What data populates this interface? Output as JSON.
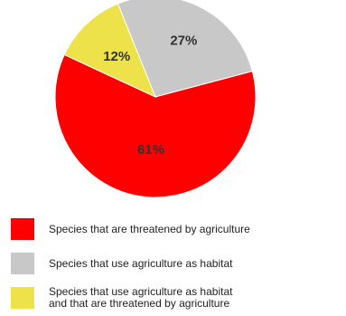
{
  "chart_data": {
    "type": "pie",
    "series": [
      {
        "name": "Species that are threatened by agriculture",
        "value": 61,
        "label": "61%",
        "color": "#ff0000"
      },
      {
        "name": "Species that use agriculture as habitat",
        "value": 27,
        "label": "27%",
        "color": "#c8c8c8"
      },
      {
        "name": "Species that use agriculture as habitat\nand that are threatened by agriculture",
        "value": 12,
        "label": "12%",
        "color": "#eee24a"
      }
    ],
    "legend_position": "bottom-left"
  }
}
